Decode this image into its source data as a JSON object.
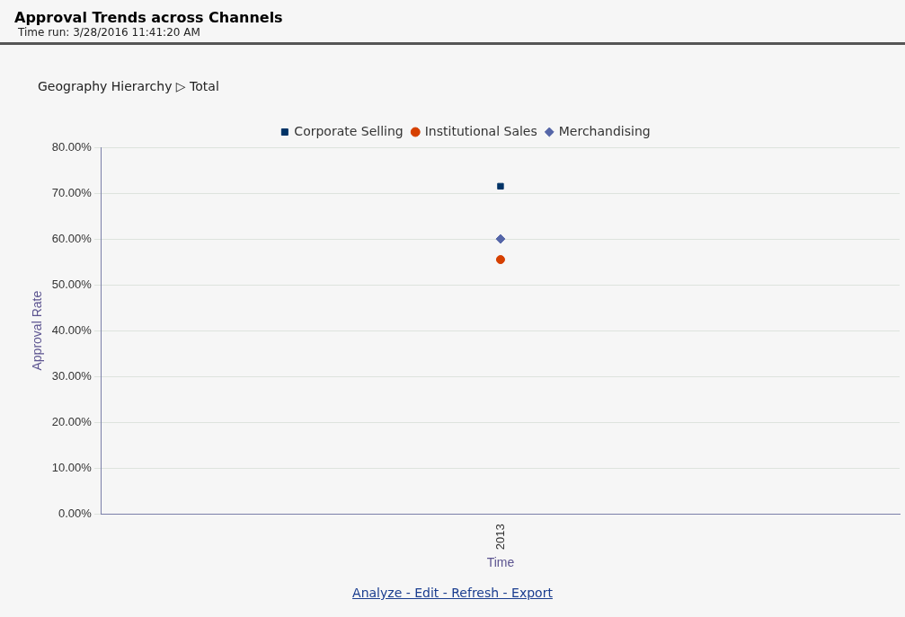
{
  "chart_data": {
    "type": "line",
    "title": "Approval Trends across Channels",
    "subtitle": "Time run: 3/28/2016 11:41:20 AM",
    "annotations": [
      "Geography Hierarchy ▷ Total",
      "Analyze - Edit - Refresh - Export"
    ],
    "xlabel": "Time",
    "ylabel": "Approval Rate",
    "categories": [
      "2013"
    ],
    "series": [
      {
        "name": "Corporate Selling",
        "color": "#003366",
        "values": [
          71.5
        ],
        "marker": "square"
      },
      {
        "name": "Institutional Sales",
        "color": "#d64000",
        "values": [
          55.5
        ],
        "marker": "circle"
      },
      {
        "name": "Merchandising",
        "color": "#5566a8",
        "values": [
          60
        ],
        "marker": "diamond"
      }
    ],
    "ylim": [
      0,
      80
    ],
    "yticks": [
      {
        "value": 0,
        "label": "0.00%"
      },
      {
        "value": 10,
        "label": "10.00%"
      },
      {
        "value": 20,
        "label": "20.00%"
      },
      {
        "value": 30,
        "label": "30.00%"
      },
      {
        "value": 40,
        "label": "40.00%"
      },
      {
        "value": 50,
        "label": "50.00%"
      },
      {
        "value": 60,
        "label": "60.00%"
      },
      {
        "value": 70,
        "label": "70.00%"
      },
      {
        "value": 80,
        "label": "80.00%"
      }
    ],
    "grid": "y",
    "legend": "top"
  }
}
